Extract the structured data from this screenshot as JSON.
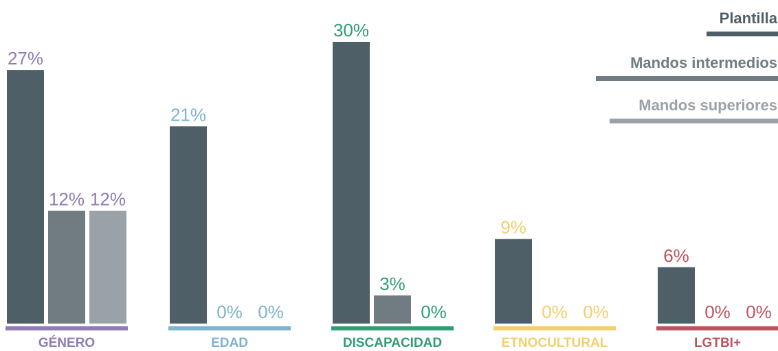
{
  "chart_data": {
    "type": "bar",
    "ylim": [
      0,
      30
    ],
    "series": [
      {
        "name": "Plantilla",
        "color": "#4f5f68",
        "values": [
          27,
          21,
          30,
          9,
          6
        ]
      },
      {
        "name": "Mandos intermedios",
        "color": "#707c82",
        "values": [
          12,
          0,
          3,
          0,
          0
        ]
      },
      {
        "name": "Mandos superiores",
        "color": "#9aa2a7",
        "values": [
          12,
          0,
          0,
          0,
          0
        ]
      }
    ],
    "categories": [
      {
        "label": "GÉNERO",
        "color": "#8f7bb8"
      },
      {
        "label": "EDAD",
        "color": "#7db3cf"
      },
      {
        "label": "DISCAPACIDAD",
        "color": "#2e9e73"
      },
      {
        "label": "ETNOCULTURAL",
        "color": "#f2cf6b"
      },
      {
        "label": "LGTBI+",
        "color": "#c0525f"
      }
    ],
    "value_labels": [
      [
        "27%",
        "12%",
        "12%"
      ],
      [
        "21%",
        "0%",
        "0%"
      ],
      [
        "30%",
        "3%",
        "0%"
      ],
      [
        "9%",
        "0%",
        "0%"
      ],
      [
        "6%",
        "0%",
        "0%"
      ]
    ],
    "legend_position": "top-right"
  }
}
